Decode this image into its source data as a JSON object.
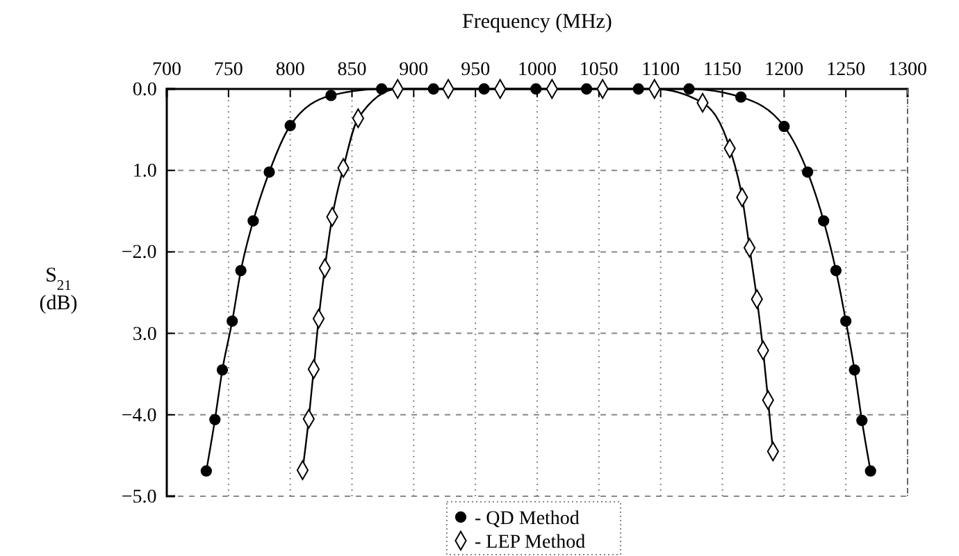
{
  "chart_data": {
    "type": "line",
    "xlabel": "Frequency (MHz)",
    "ylabel": "S$_{21}$ (dB)",
    "xlim": [
      700,
      1300
    ],
    "xticks": [
      700,
      750,
      800,
      850,
      900,
      950,
      1000,
      1050,
      1100,
      1150,
      1200,
      1250,
      1300
    ],
    "ylim": [
      -5,
      0
    ],
    "yticks": [
      {
        "value": 0,
        "label": "0.0"
      },
      {
        "value": -1,
        "label": "1.0"
      },
      {
        "value": -2,
        "label": "−2.0"
      },
      {
        "value": -3,
        "label": "3.0"
      },
      {
        "value": -4,
        "label": "−4.0"
      },
      {
        "value": -5,
        "label": "−5.0"
      }
    ],
    "grid": true,
    "legend": "bottom",
    "series": [
      {
        "name": "- QD Method",
        "color": "#000000",
        "marker": "circle",
        "x": [
          732,
          739,
          745,
          753,
          760,
          770,
          783,
          800,
          833,
          874,
          916,
          957,
          999,
          1040,
          1082,
          1123,
          1165,
          1200,
          1219,
          1232,
          1242,
          1250,
          1257,
          1263,
          1270
        ],
        "values": [
          -4.69,
          -4.06,
          -3.45,
          -2.85,
          -2.23,
          -1.62,
          -1.02,
          -0.45,
          -0.08,
          0,
          0,
          0,
          0,
          0,
          0,
          0,
          -0.1,
          -0.46,
          -1.02,
          -1.62,
          -2.23,
          -2.85,
          -3.45,
          -4.07,
          -4.69
        ]
      },
      {
        "name": "- LEP Method",
        "color": "#000000",
        "marker": "diamond",
        "x": [
          810,
          815,
          819,
          823,
          828,
          834,
          843,
          855,
          887,
          928,
          970,
          1012,
          1053,
          1095,
          1134,
          1156,
          1166,
          1172,
          1178,
          1183,
          1187,
          1191
        ],
        "values": [
          -4.68,
          -4.05,
          -3.44,
          -2.82,
          -2.2,
          -1.57,
          -0.97,
          -0.36,
          0,
          0,
          0,
          0,
          0,
          0,
          -0.17,
          -0.73,
          -1.33,
          -1.95,
          -2.58,
          -3.21,
          -3.82,
          -4.45
        ]
      }
    ]
  }
}
